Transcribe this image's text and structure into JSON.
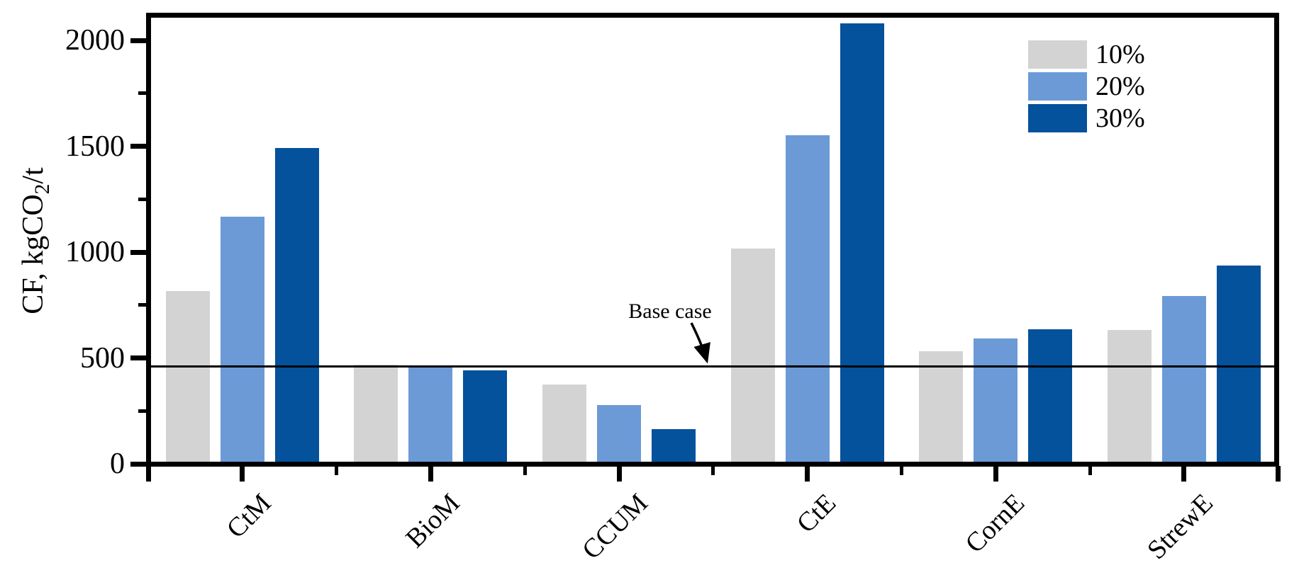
{
  "chart_data": {
    "type": "bar",
    "title": "",
    "xlabel": "",
    "ylabel": "CF, kgCO2/t",
    "ylabel_parts": {
      "prefix": "CF, kgCO",
      "sub": "2",
      "suffix": "/t"
    },
    "categories": [
      "CtM",
      "BioM",
      "CCUM",
      "CtE",
      "CornE",
      "StrewE"
    ],
    "series": [
      {
        "name": "10%",
        "color": "#d3d3d3",
        "values": [
          820,
          470,
          378,
          1020,
          535,
          635
        ]
      },
      {
        "name": "20%",
        "color": "#6b9ad7",
        "values": [
          1170,
          465,
          280,
          1555,
          595,
          795
        ]
      },
      {
        "name": "30%",
        "color": "#04519c",
        "values": [
          1495,
          445,
          168,
          2085,
          640,
          940
        ]
      }
    ],
    "yticks": [
      0,
      500,
      1000,
      1500,
      2000
    ],
    "yticks_minor": [
      250,
      750,
      1250,
      1750
    ],
    "ylim": [
      0,
      2120
    ],
    "grid": false,
    "legend_position": "top-right",
    "baseline": {
      "label": "Base case",
      "value": 460
    }
  }
}
